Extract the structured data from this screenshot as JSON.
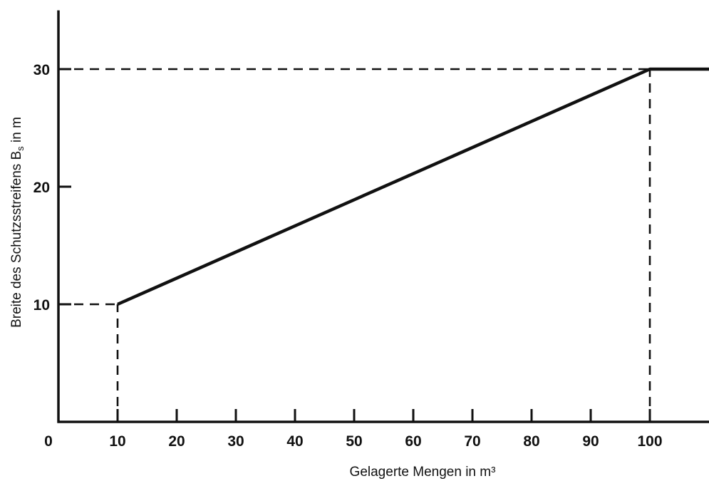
{
  "chart_data": {
    "type": "line",
    "title": "",
    "xlabel": "Gelagerte Mengen in m³",
    "ylabel": "Breite des Schutzsstreifens Bs in m",
    "ylabel_main": "Breite des Schutzsstreifens B",
    "ylabel_sub": "s",
    "ylabel_tail": " in m",
    "xlim": [
      0,
      110
    ],
    "ylim": [
      0,
      35
    ],
    "x_origin_label": "0",
    "x_ticks": [
      10,
      20,
      30,
      40,
      50,
      60,
      70,
      80,
      90,
      100
    ],
    "y_ticks": [
      10,
      20,
      30
    ],
    "grid": false,
    "series": [
      {
        "x": [
          10,
          100,
          110
        ],
        "y": [
          10,
          30,
          30
        ]
      }
    ],
    "reference_lines": [
      {
        "from": [
          0,
          10
        ],
        "to": [
          10,
          10
        ]
      },
      {
        "from": [
          10,
          0
        ],
        "to": [
          10,
          10
        ]
      },
      {
        "from": [
          0,
          30
        ],
        "to": [
          100,
          30
        ]
      },
      {
        "from": [
          100,
          0
        ],
        "to": [
          100,
          30
        ]
      }
    ]
  }
}
